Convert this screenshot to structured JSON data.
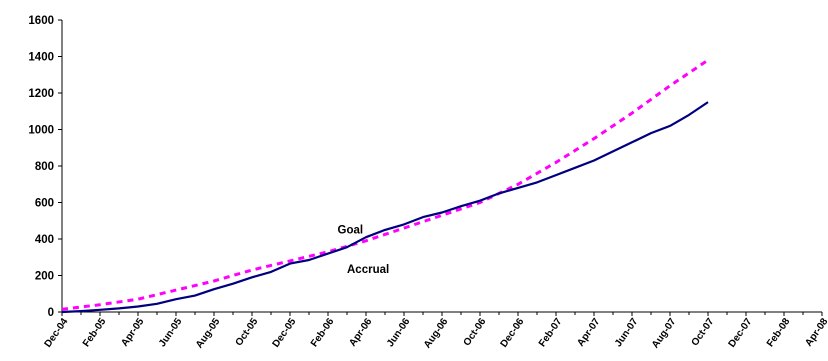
{
  "chart_data": {
    "type": "line",
    "title": "",
    "xlabel": "",
    "ylabel": "",
    "ylim": [
      0,
      1600
    ],
    "yticks": [
      0,
      200,
      400,
      600,
      800,
      1000,
      1200,
      1400,
      1600
    ],
    "xtick_labels": [
      "Dec-04",
      "Feb-05",
      "Apr-05",
      "Jun-05",
      "Aug-05",
      "Oct-05",
      "Dec-05",
      "Feb-06",
      "Apr-06",
      "Jun-06",
      "Aug-06",
      "Oct-06",
      "Dec-06",
      "Feb-07",
      "Apr-07",
      "Jun-07",
      "Aug-07",
      "Oct-07",
      "Dec-07",
      "Feb-08",
      "Apr-08"
    ],
    "grid": false,
    "legend": "none",
    "series": [
      {
        "name": "Goal",
        "style": "dashed",
        "color": "#ff00ff",
        "x_index": [
          0,
          2,
          4,
          6,
          8,
          10,
          12,
          14,
          16,
          18,
          20,
          22,
          24,
          26,
          28,
          30,
          32,
          34
        ],
        "values": [
          15,
          40,
          70,
          120,
          170,
          230,
          280,
          330,
          390,
          460,
          530,
          600,
          700,
          820,
          950,
          1090,
          1240,
          1380
        ]
      },
      {
        "name": "Accrual",
        "style": "solid",
        "color": "#000080",
        "x_index": [
          0,
          1,
          2,
          3,
          4,
          5,
          6,
          7,
          8,
          9,
          10,
          11,
          12,
          13,
          14,
          15,
          16,
          17,
          18,
          19,
          20,
          21,
          22,
          23,
          24,
          25,
          26,
          27,
          28,
          29,
          30,
          31,
          32,
          33,
          34
        ],
        "values": [
          0,
          5,
          12,
          20,
          30,
          45,
          70,
          90,
          125,
          155,
          190,
          220,
          265,
          285,
          320,
          355,
          410,
          450,
          480,
          520,
          545,
          580,
          610,
          650,
          680,
          710,
          750,
          790,
          830,
          880,
          930,
          980,
          1020,
          1080,
          1150
        ]
      }
    ],
    "annotations": [
      {
        "text": "Goal",
        "x_index": 14.5,
        "y": 430
      },
      {
        "text": "Accrual",
        "x_index": 15,
        "y": 215
      }
    ]
  }
}
